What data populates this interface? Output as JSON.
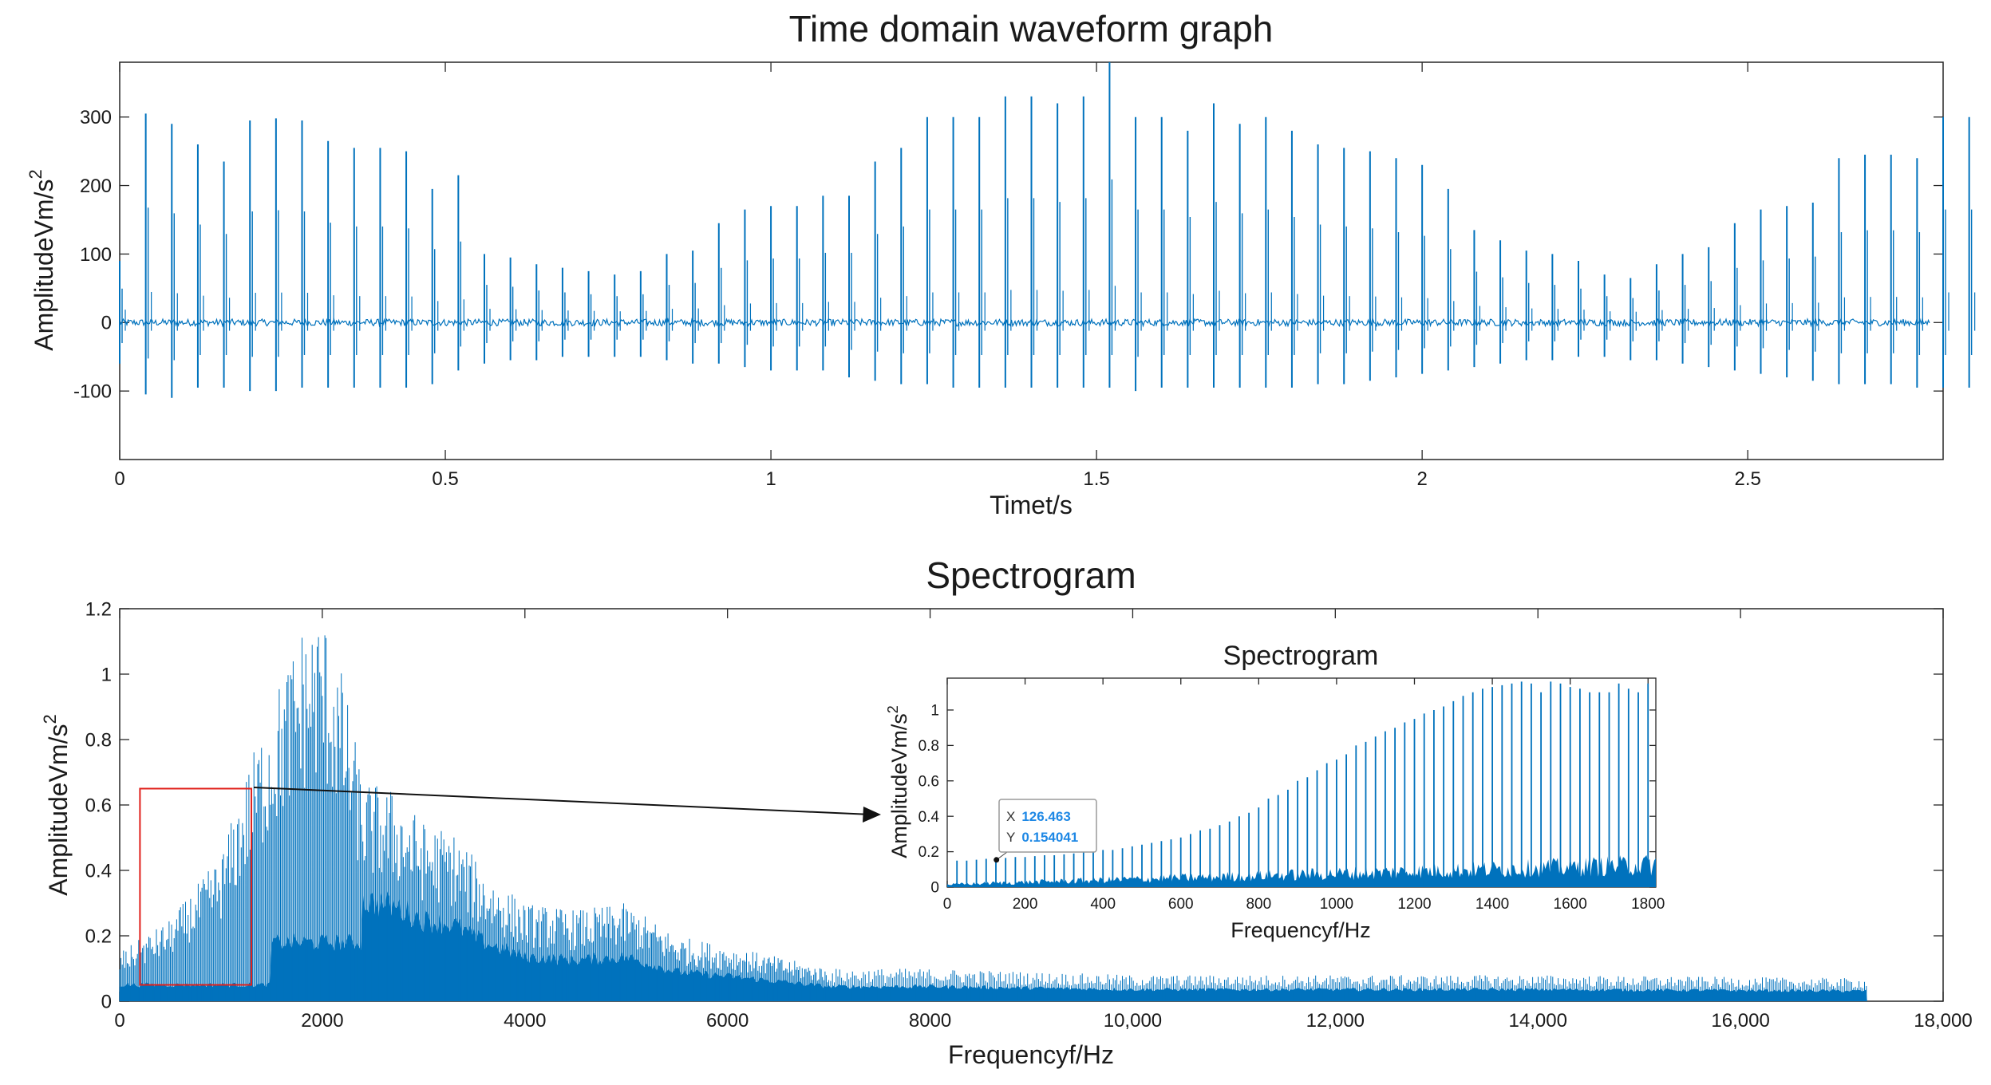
{
  "chart_data": [
    {
      "id": "time",
      "type": "line",
      "title": "Time domain waveform graph",
      "xlabel": "Timet/s",
      "ylabel": "AmplitudeVm/s",
      "ylabel_superscript": "2",
      "xlim": [
        0,
        2.8
      ],
      "ylim": [
        -200,
        380
      ],
      "xticks": [
        0,
        0.5,
        1,
        1.5,
        2,
        2.5
      ],
      "xtick_labels": [
        "0",
        "0.5",
        "1",
        "1.5",
        "2",
        "2.5"
      ],
      "yticks": [
        -100,
        0,
        100,
        200,
        300
      ],
      "ytick_labels": [
        "-100",
        "0",
        "100",
        "200",
        "300"
      ],
      "line_color": "#0072BD",
      "impulse_interval_s": 0.04,
      "series": [
        {
          "peaks_max": [
            90,
            305,
            290,
            260,
            235,
            295,
            298,
            295,
            265,
            255,
            255,
            250,
            195,
            215,
            100,
            95,
            85,
            80,
            75,
            70,
            75,
            100,
            105,
            145,
            165,
            170,
            170,
            185,
            185,
            235,
            255,
            300,
            300,
            300,
            330,
            330,
            320,
            330,
            380,
            300,
            300,
            280,
            320,
            290,
            300,
            280,
            260,
            255,
            250,
            240,
            230,
            195,
            135,
            120,
            105,
            100,
            90,
            70,
            65,
            85,
            100,
            110,
            145,
            165,
            170,
            175,
            240,
            245,
            245,
            240,
            300,
            300
          ],
          "peaks_min": [
            -60,
            -105,
            -110,
            -95,
            -95,
            -100,
            -100,
            -95,
            -95,
            -95,
            -95,
            -95,
            -90,
            -70,
            -60,
            -55,
            -55,
            -50,
            -50,
            -50,
            -50,
            -55,
            -60,
            -60,
            -65,
            -70,
            -70,
            -70,
            -80,
            -85,
            -90,
            -90,
            -95,
            -95,
            -95,
            -95,
            -95,
            -95,
            -95,
            -100,
            -95,
            -95,
            -95,
            -95,
            -95,
            -95,
            -90,
            -90,
            -85,
            -80,
            -75,
            -70,
            -65,
            -60,
            -55,
            -55,
            -50,
            -50,
            -55,
            -55,
            -60,
            -65,
            -70,
            -75,
            -80,
            -85,
            -90,
            -90,
            -90,
            -95,
            -95,
            -95
          ]
        }
      ]
    },
    {
      "id": "spectrum",
      "type": "line",
      "title": "Spectrogram",
      "xlabel": "Frequencyf/Hz",
      "ylabel": "AmplitudeVm/s",
      "ylabel_superscript": "2",
      "xlim": [
        0,
        18000
      ],
      "ylim": [
        0,
        1.2
      ],
      "xticks": [
        0,
        2000,
        4000,
        6000,
        8000,
        10000,
        12000,
        14000,
        16000,
        18000
      ],
      "xtick_labels": [
        "0",
        "2000",
        "4000",
        "6000",
        "8000",
        "10,000",
        "12,000",
        "14,000",
        "16,000",
        "18,000"
      ],
      "yticks": [
        0,
        0.2,
        0.4,
        0.6,
        0.8,
        1,
        1.2
      ],
      "ytick_labels": [
        "0",
        "0.2",
        "0.4",
        "0.6",
        "0.8",
        "1",
        "1.2"
      ],
      "line_color": "#0072BD",
      "data_end_hz": 17250,
      "envelope_hz": [
        0,
        500,
        1000,
        1300,
        1600,
        1800,
        2000,
        2200,
        2400,
        2700,
        3000,
        3300,
        3600,
        4000,
        4500,
        5000,
        5500,
        6000,
        7000,
        8000,
        10000,
        12000,
        14000,
        17250
      ],
      "envelope_amp": [
        0.15,
        0.25,
        0.45,
        0.75,
        1.0,
        1.15,
        1.2,
        1.0,
        0.68,
        0.65,
        0.55,
        0.52,
        0.4,
        0.3,
        0.28,
        0.3,
        0.2,
        0.17,
        0.1,
        0.1,
        0.08,
        0.08,
        0.08,
        0.07
      ],
      "zoom_box": {
        "x": [
          200,
          1300
        ],
        "y": [
          0.05,
          0.65
        ],
        "color": "#E0201B"
      }
    },
    {
      "id": "inset",
      "type": "line",
      "title": "Spectrogram",
      "xlabel": "Frequencyf/Hz",
      "ylabel": "AmplitudeVm/s",
      "ylabel_superscript": "2",
      "xlim": [
        0,
        1820
      ],
      "ylim": [
        0,
        1.18
      ],
      "xticks": [
        0,
        200,
        400,
        600,
        800,
        1000,
        1200,
        1400,
        1600,
        1800
      ],
      "xtick_labels": [
        "0",
        "200",
        "400",
        "600",
        "800",
        "1000",
        "1200",
        "1400",
        "1600",
        "1800"
      ],
      "yticks": [
        0,
        0.2,
        0.4,
        0.6,
        0.8,
        1
      ],
      "ytick_labels": [
        "0",
        "0.2",
        "0.4",
        "0.6",
        "0.8",
        "1"
      ],
      "line_color": "#0072BD",
      "harmonic_spacing_hz": 25,
      "harmonic_peaks": [
        0.15,
        0.15,
        0.155,
        0.16,
        0.16,
        0.165,
        0.17,
        0.17,
        0.175,
        0.18,
        0.18,
        0.185,
        0.19,
        0.2,
        0.2,
        0.21,
        0.21,
        0.22,
        0.23,
        0.24,
        0.25,
        0.26,
        0.27,
        0.28,
        0.3,
        0.32,
        0.33,
        0.35,
        0.37,
        0.4,
        0.42,
        0.45,
        0.5,
        0.52,
        0.55,
        0.6,
        0.62,
        0.66,
        0.7,
        0.72,
        0.75,
        0.8,
        0.82,
        0.85,
        0.88,
        0.9,
        0.93,
        0.95,
        0.98,
        1.0,
        1.02,
        1.05,
        1.08,
        1.1,
        1.12,
        1.13,
        1.14,
        1.15,
        1.16,
        1.15,
        1.1,
        1.16,
        1.15,
        1.13,
        1.12,
        1.1,
        1.1,
        1.1,
        1.15,
        1.12,
        1.1,
        1.15
      ],
      "datatip": {
        "x_label": "X",
        "x_value": "126.463",
        "y_label": "Y",
        "y_value": "0.154041",
        "x": 126.463,
        "y": 0.154041
      }
    }
  ]
}
